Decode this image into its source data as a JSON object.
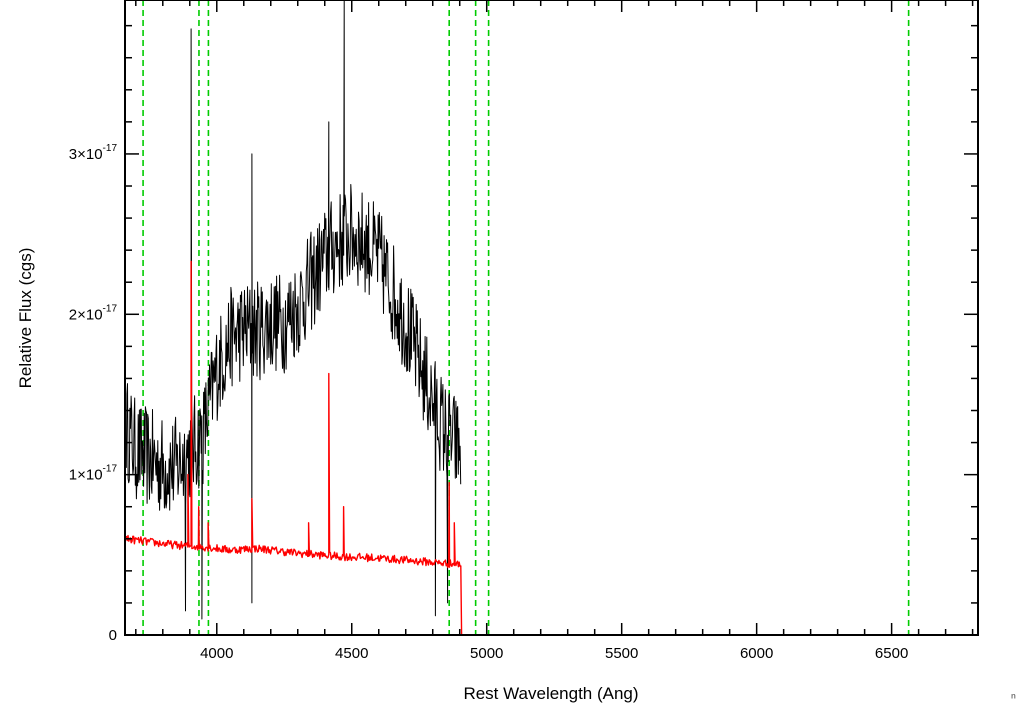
{
  "chart_data": {
    "type": "line",
    "xlabel": "Rest Wavelength (Ang)",
    "ylabel": "Relative Flux (cgs)",
    "xlim": [
      3660,
      6820
    ],
    "ylim": [
      0,
      3.96e-17
    ],
    "x_ticks": [
      {
        "value": 4000,
        "label": "4000"
      },
      {
        "value": 4500,
        "label": "4500"
      },
      {
        "value": 5000,
        "label": "5000"
      },
      {
        "value": 5500,
        "label": "5500"
      },
      {
        "value": 6000,
        "label": "6000"
      },
      {
        "value": 6500,
        "label": "6500"
      }
    ],
    "y_ticks": [
      {
        "value": 0,
        "mantissa": "0",
        "exponent": ""
      },
      {
        "value": 1e-17,
        "mantissa": "1×10",
        "exponent": "-17"
      },
      {
        "value": 2e-17,
        "mantissa": "2×10",
        "exponent": "-17"
      },
      {
        "value": 3e-17,
        "mantissa": "3×10",
        "exponent": "-17"
      }
    ],
    "vertical_lines": {
      "color": "#00cc00",
      "style": "dashed",
      "x": [
        3727,
        3934,
        3969,
        4861,
        4959,
        5007,
        6563
      ]
    },
    "series": [
      {
        "color": "#000000",
        "x_range": [
          3665,
          4905
        ],
        "envelope": [
          [
            3665,
            1.3e-17
          ],
          [
            3700,
            1.15e-17
          ],
          [
            3750,
            1.1e-17
          ],
          [
            3800,
            1.05e-17
          ],
          [
            3850,
            1.05e-17
          ],
          [
            3900,
            1.15e-17
          ],
          [
            3950,
            1.25e-17
          ],
          [
            4000,
            1.65e-17
          ],
          [
            4050,
            1.85e-17
          ],
          [
            4100,
            1.9e-17
          ],
          [
            4150,
            1.9e-17
          ],
          [
            4200,
            1.95e-17
          ],
          [
            4250,
            1.95e-17
          ],
          [
            4300,
            2.05e-17
          ],
          [
            4350,
            2.2e-17
          ],
          [
            4400,
            2.35e-17
          ],
          [
            4450,
            2.45e-17
          ],
          [
            4500,
            2.5e-17
          ],
          [
            4550,
            2.45e-17
          ],
          [
            4600,
            2.35e-17
          ],
          [
            4650,
            2.15e-17
          ],
          [
            4700,
            1.95e-17
          ],
          [
            4750,
            1.7e-17
          ],
          [
            4800,
            1.45e-17
          ],
          [
            4850,
            1.25e-17
          ],
          [
            4880,
            1.2e-17
          ],
          [
            4905,
            1.15e-17
          ]
        ],
        "noise_amplitude": 3.2e-18,
        "spikes": [
          [
            3905,
            3.78e-17
          ],
          [
            3884,
            1.5e-18
          ],
          [
            3945,
            1e-18
          ],
          [
            4130,
            2e-18
          ],
          [
            4415,
            3.2e-17
          ],
          [
            4472,
            3.96e-17
          ],
          [
            4130,
            3e-17
          ],
          [
            4810,
            1.2e-18
          ],
          [
            4855,
            2e-18
          ]
        ]
      },
      {
        "color": "#ff0000",
        "x_range": [
          3665,
          6820
        ],
        "envelope": [
          [
            3665,
            6e-18
          ],
          [
            3750,
            5.8e-18
          ],
          [
            3850,
            5.6e-18
          ],
          [
            3950,
            5.5e-18
          ],
          [
            4050,
            5.3e-18
          ],
          [
            4150,
            5.4e-18
          ],
          [
            4300,
            5.1e-18
          ],
          [
            4450,
            4.9e-18
          ],
          [
            4600,
            4.8e-18
          ],
          [
            4750,
            4.6e-18
          ],
          [
            4900,
            4.4e-18
          ],
          [
            4905,
            4.4e-18
          ],
          [
            4906,
            0
          ],
          [
            6820,
            0
          ]
        ],
        "noise_amplitude": 2.5e-19,
        "spikes": [
          [
            3905,
            2.33e-17
          ],
          [
            3893,
            1e-17
          ],
          [
            3933,
            8e-18
          ],
          [
            3968,
            7e-18
          ],
          [
            4130,
            8.5e-18
          ],
          [
            4340,
            7e-18
          ],
          [
            4415,
            1.63e-17
          ],
          [
            4470,
            8e-18
          ],
          [
            4861,
            9.5e-18
          ],
          [
            4880,
            7e-18
          ]
        ]
      }
    ]
  },
  "ui": {
    "corner_grip_icon": "resize-grip-icon"
  }
}
